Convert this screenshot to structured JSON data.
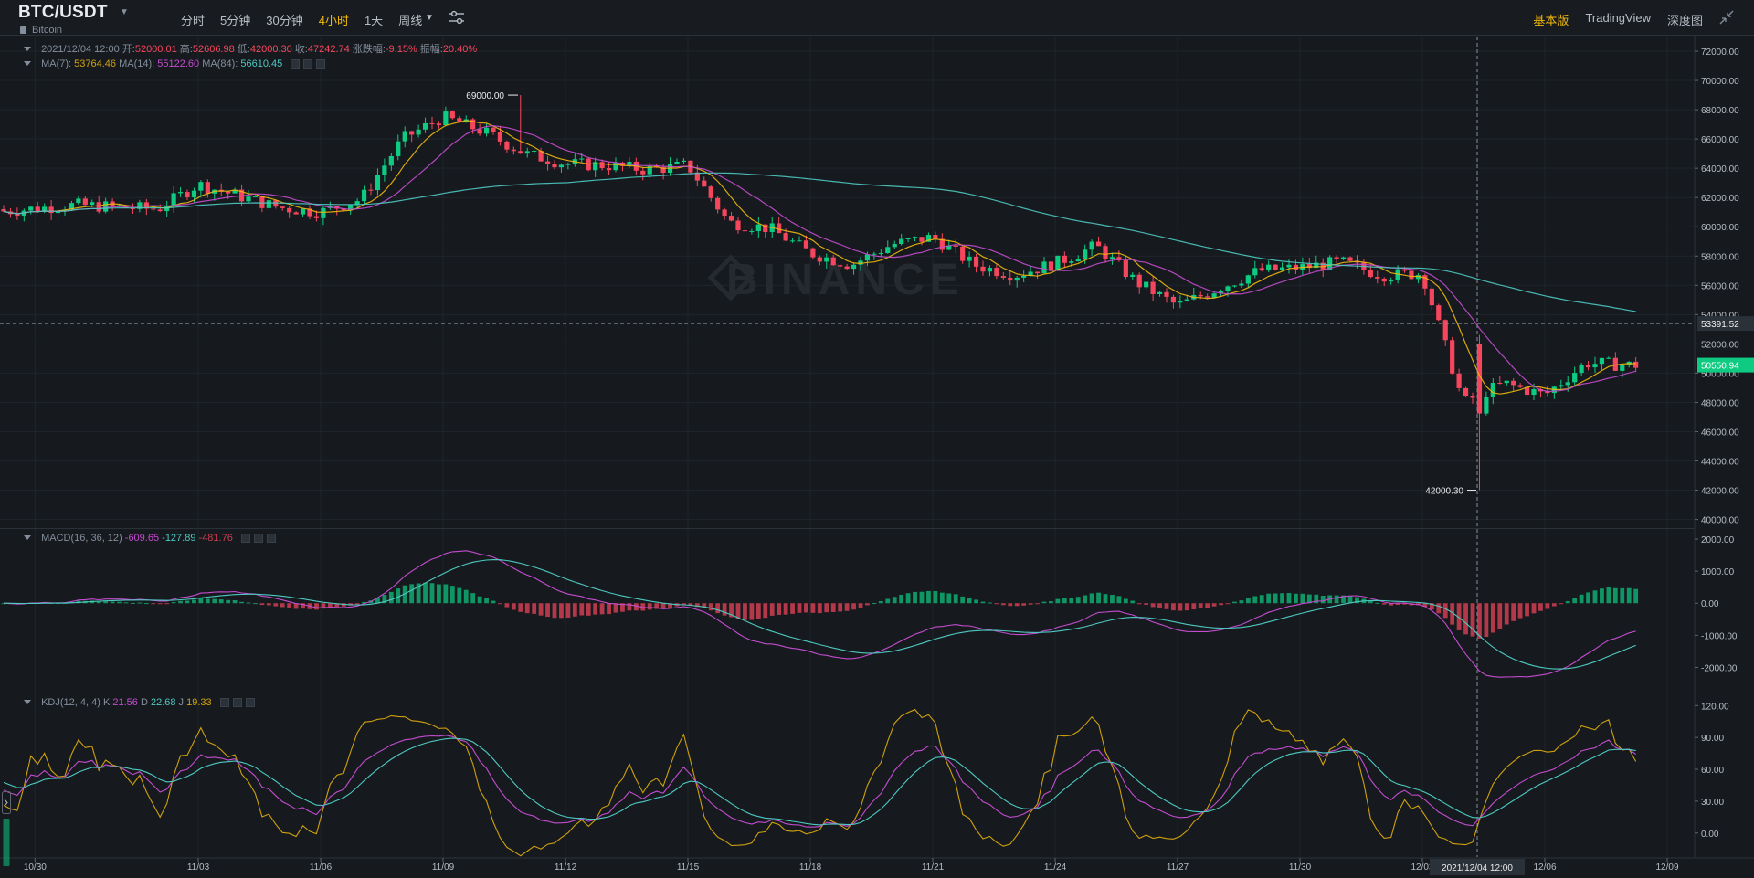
{
  "header": {
    "symbol": "BTC/USDT",
    "coin_name": "Bitcoin",
    "intervals": [
      "分时",
      "5分钟",
      "30分钟",
      "4小时",
      "1天",
      "周线"
    ],
    "active_interval": "4小时",
    "views": [
      "基本版",
      "TradingView",
      "深度图"
    ],
    "active_view": "基本版"
  },
  "ohlc_legend": {
    "date": "2021/12/04 12:00",
    "open_label": "开:",
    "open": "52000.01",
    "high_label": "高:",
    "high": "52606.98",
    "low_label": "低:",
    "low": "42000.30",
    "close_label": "收:",
    "close": "47242.74",
    "change_label": "涨跌幅:",
    "change": "-9.15%",
    "amplitude_label": "振幅:",
    "amplitude": "20.40%"
  },
  "ma_legend": {
    "ma7_label": "MA(7):",
    "ma7": "53764.46",
    "ma14_label": "MA(14):",
    "ma14": "55122.60",
    "ma84_label": "MA(84):",
    "ma84": "56610.45"
  },
  "macd_legend": {
    "label": "MACD(16, 36, 12)",
    "dif": "-609.65",
    "dea": "-127.89",
    "hist": "-481.76"
  },
  "kdj_legend": {
    "label": "KDJ(12, 4, 4)",
    "k_label": "K",
    "k": "21.56",
    "d_label": "D",
    "d": "22.68",
    "j_label": "J",
    "j": "19.33"
  },
  "watermark": "BINANCE",
  "colors": {
    "up": "#0ecb81",
    "down": "#f6465d",
    "ma7": "#f0b90b",
    "ma14": "#c44ccf",
    "ma84": "#4ec9c1",
    "accent": "#f0b90b"
  },
  "chart_data": {
    "type": "candlestick",
    "title": "BTC/USDT",
    "interval": "4小时",
    "x_labels": [
      "10/30",
      "11/03",
      "11/06",
      "11/09",
      "11/12",
      "11/15",
      "11/18",
      "11/21",
      "11/24",
      "11/27",
      "11/30",
      "12/03",
      "12/06",
      "12/09"
    ],
    "price_axis": {
      "ticks": [
        "72000.00",
        "70000.00",
        "68000.00",
        "66000.00",
        "64000.00",
        "62000.00",
        "60000.00",
        "58000.00",
        "56000.00",
        "54000.00",
        "52000.00",
        "50000.00",
        "48000.00",
        "46000.00",
        "44000.00",
        "42000.00",
        "40000.00"
      ],
      "ylim": [
        39600,
        73000
      ]
    },
    "close_series_anchors": [
      [
        "10/29",
        61000
      ],
      [
        "10/31",
        61500
      ],
      [
        "11/02",
        61200
      ],
      [
        "11/03",
        62900
      ],
      [
        "11/05",
        61300
      ],
      [
        "11/06",
        61000
      ],
      [
        "11/07",
        61900
      ],
      [
        "11/08",
        66000
      ],
      [
        "11/09",
        67500
      ],
      [
        "11/10",
        66500
      ],
      [
        "11/11",
        65000
      ],
      [
        "11/12",
        64300
      ],
      [
        "11/13",
        64200
      ],
      [
        "11/14",
        63900
      ],
      [
        "11/15",
        64200
      ],
      [
        "11/16",
        60300
      ],
      [
        "11/17",
        59900
      ],
      [
        "11/18",
        58200
      ],
      [
        "11/19",
        57400
      ],
      [
        "11/20",
        58800
      ],
      [
        "11/21",
        59300
      ],
      [
        "11/22",
        57400
      ],
      [
        "11/23",
        56700
      ],
      [
        "11/24",
        57500
      ],
      [
        "11/25",
        58700
      ],
      [
        "11/26",
        56200
      ],
      [
        "11/27",
        54600
      ],
      [
        "11/28",
        55800
      ],
      [
        "11/29",
        57000
      ],
      [
        "11/30",
        57200
      ],
      [
        "12/01",
        57600
      ],
      [
        "12/02",
        56700
      ],
      [
        "12/03",
        56800
      ],
      [
        "12/04",
        48000
      ],
      [
        "12/05",
        49300
      ],
      [
        "12/06",
        48500
      ],
      [
        "12/07",
        50700
      ],
      [
        "12/08",
        50550
      ]
    ],
    "annotations": {
      "high_marker": "69000.00",
      "low_marker": "42000.30",
      "crosshair_price": "53391.52",
      "last_price": "50550.94",
      "crosshair_time": "2021/12/04 12:00"
    },
    "indicators": {
      "macd": {
        "params": "16, 36, 12",
        "ticks": [
          "2000.00",
          "1000.00",
          "0.00",
          "-1000.00",
          "-2000.00"
        ],
        "ylim": [
          -2700,
          2200
        ]
      },
      "kdj": {
        "params": "12, 4, 4",
        "ticks": [
          "120.00",
          "90.00",
          "60.00",
          "30.00",
          "0.00"
        ],
        "ylim": [
          -20,
          128
        ]
      }
    }
  }
}
